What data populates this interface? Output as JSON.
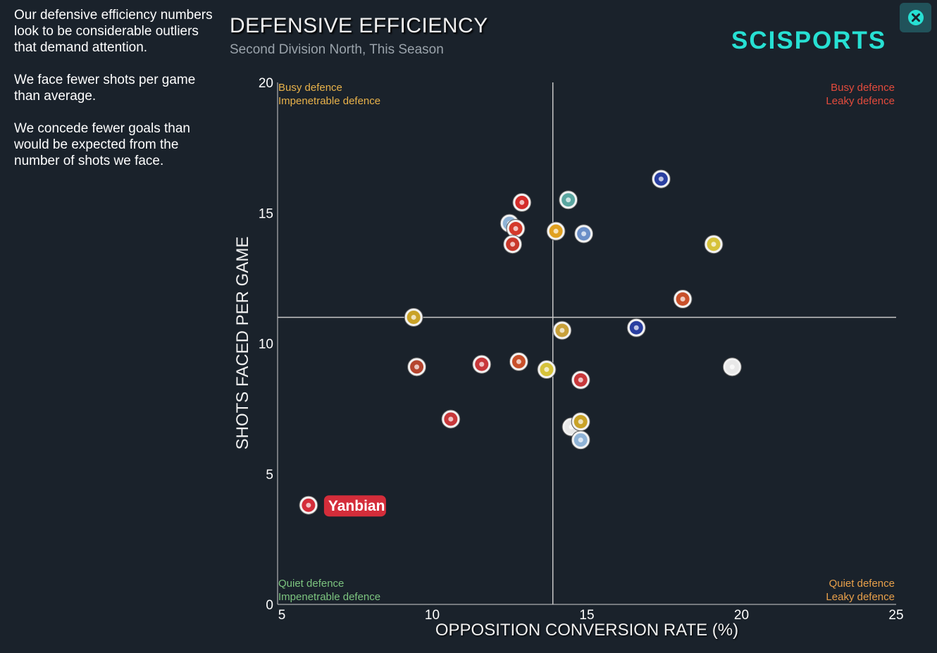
{
  "sidebar": {
    "paragraphs": [
      "Our defensive efficiency numbers look to be considerable outliers that demand attention.",
      "We face fewer shots per game than average.",
      "We concede fewer goals than would be expected from the number of shots we face."
    ]
  },
  "header": {
    "title": "DEFENSIVE EFFICIENCY",
    "subtitle": "Second Division North, This Season",
    "logo_text": "SCISPORTS"
  },
  "colors": {
    "background": "#1a222b",
    "accent": "#27e0d3",
    "highlight": "#d42d3a",
    "busy_impenetrable": "#e8b24a",
    "busy_leaky": "#e34b3c",
    "quiet_impenetrable": "#7cc47f",
    "quiet_leaky": "#e8a04a"
  },
  "quadrants": {
    "top_left": [
      "Busy defence",
      "Impenetrable defence"
    ],
    "top_right": [
      "Busy defence",
      "Leaky defence"
    ],
    "bottom_left": [
      "Quiet defence",
      "Impenetrable defence"
    ],
    "bottom_right": [
      "Quiet defence",
      "Leaky defence"
    ]
  },
  "chart_data": {
    "type": "scatter",
    "title": "DEFENSIVE EFFICIENCY",
    "subtitle": "Second Division North, This Season",
    "xlabel": "OPPOSITION CONVERSION RATE (%)",
    "ylabel": "SHOTS FACED PER GAME",
    "xlim": [
      5,
      25
    ],
    "ylim": [
      0,
      20
    ],
    "xticks": [
      5,
      10,
      15,
      20,
      25
    ],
    "yticks": [
      0,
      5,
      10,
      15,
      20
    ],
    "average_x": 13.9,
    "average_y": 11.0,
    "grid": false,
    "highlight_label": "Yanbian",
    "points": [
      {
        "x": 6.0,
        "y": 3.8,
        "label": "Yanbian",
        "color": "#d42d3a",
        "highlight": true
      },
      {
        "x": 9.4,
        "y": 11.0,
        "color": "#c9a227"
      },
      {
        "x": 9.5,
        "y": 9.1,
        "color": "#b5452e"
      },
      {
        "x": 10.6,
        "y": 7.1,
        "color": "#c8383a"
      },
      {
        "x": 11.6,
        "y": 9.2,
        "color": "#c8383a"
      },
      {
        "x": 12.5,
        "y": 14.6,
        "color": "#8fb3d6"
      },
      {
        "x": 12.7,
        "y": 14.4,
        "color": "#d43a2a"
      },
      {
        "x": 12.6,
        "y": 13.8,
        "color": "#c8382a"
      },
      {
        "x": 12.8,
        "y": 9.3,
        "color": "#c8502a"
      },
      {
        "x": 12.9,
        "y": 15.4,
        "color": "#d42d2a"
      },
      {
        "x": 13.7,
        "y": 9.0,
        "color": "#d6c23a"
      },
      {
        "x": 14.0,
        "y": 14.3,
        "color": "#e0a020"
      },
      {
        "x": 14.2,
        "y": 10.5,
        "color": "#c8a03a"
      },
      {
        "x": 14.4,
        "y": 15.5,
        "color": "#5aa6a0"
      },
      {
        "x": 14.5,
        "y": 6.8,
        "color": "#e8e8e8"
      },
      {
        "x": 14.8,
        "y": 7.0,
        "color": "#c9a227"
      },
      {
        "x": 14.8,
        "y": 6.3,
        "color": "#8fb3d6"
      },
      {
        "x": 14.8,
        "y": 8.6,
        "color": "#c8383a"
      },
      {
        "x": 14.9,
        "y": 14.2,
        "color": "#6a8fc8"
      },
      {
        "x": 16.6,
        "y": 10.6,
        "color": "#2a3fa0"
      },
      {
        "x": 17.4,
        "y": 16.3,
        "color": "#2a3fa0"
      },
      {
        "x": 18.1,
        "y": 11.7,
        "color": "#c8502a"
      },
      {
        "x": 19.1,
        "y": 13.8,
        "color": "#d6c23a"
      },
      {
        "x": 19.7,
        "y": 9.1,
        "color": "#e8e8e8"
      }
    ]
  }
}
